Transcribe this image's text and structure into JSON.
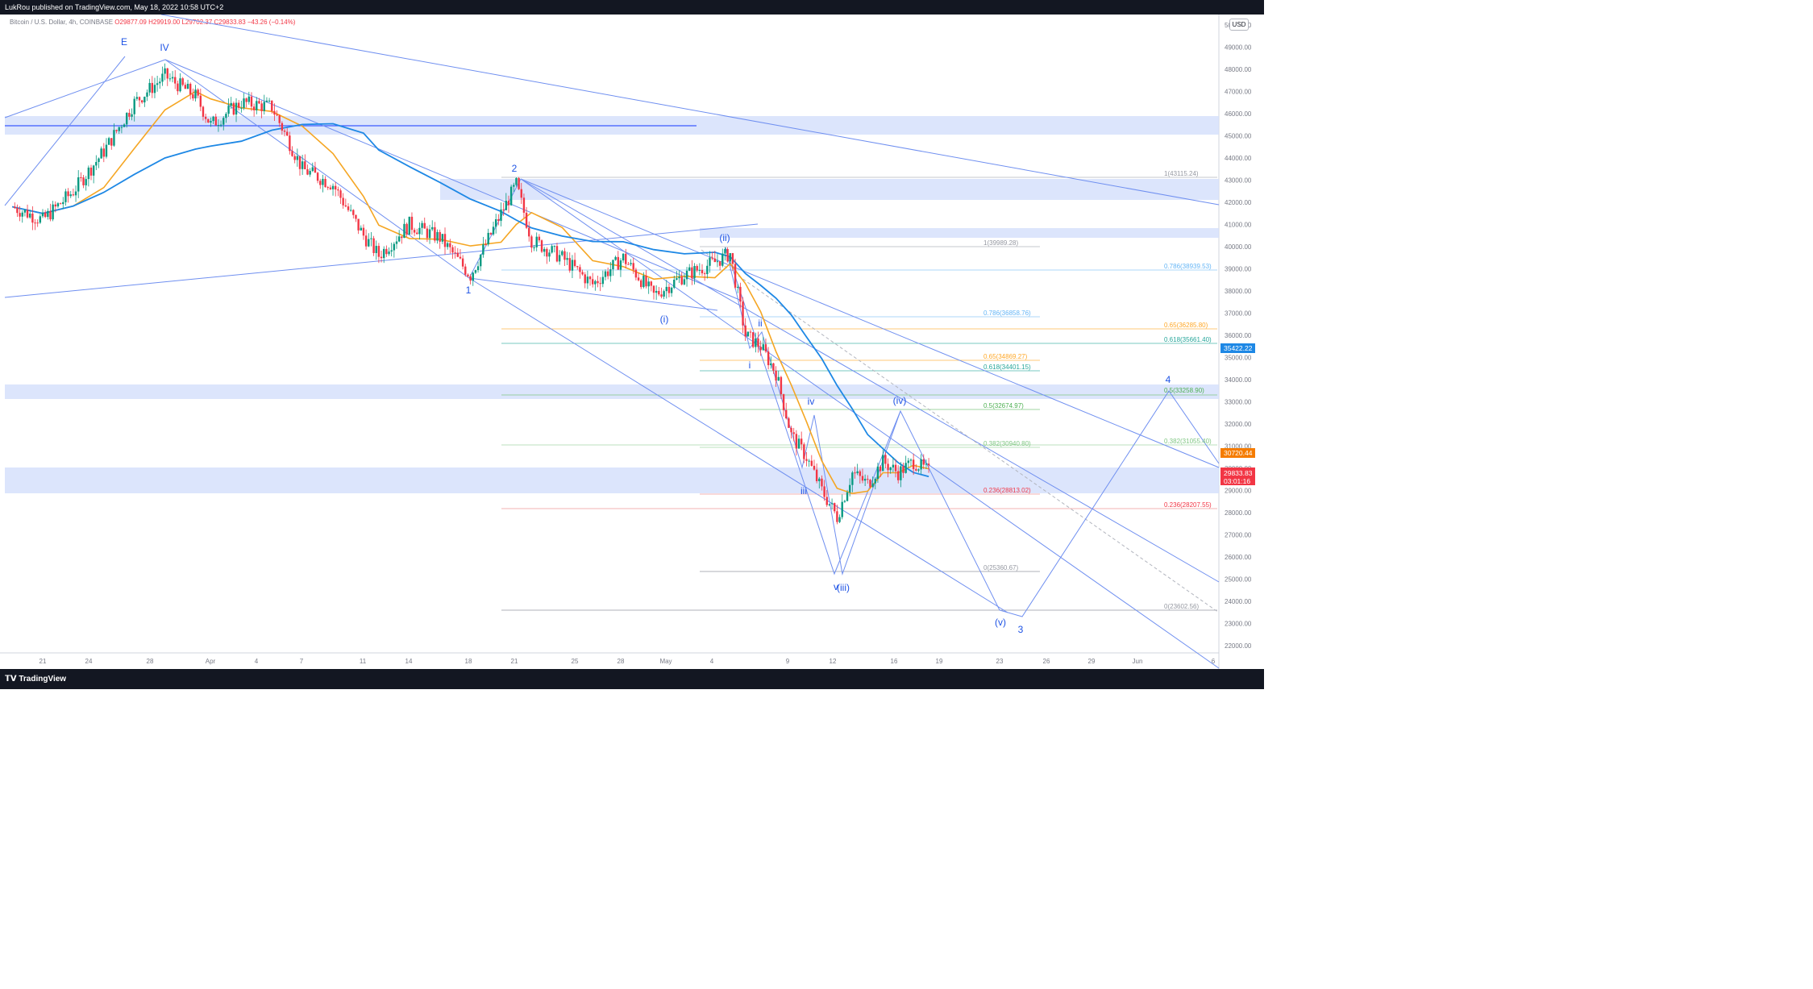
{
  "header": {
    "publisher_line": "LukRou published on TradingView.com, May 18, 2022 10:58 UTC+2"
  },
  "symbol": {
    "name": "Bitcoin / U.S. Dollar, 4h, COINBASE",
    "ohlc": "O29877.09  H29919.00  L29702.37  C29833.83  −43.26 (−0.14%)"
  },
  "price_axis": {
    "currency_button": "USD",
    "ticks": [
      "50000.00",
      "49000.00",
      "48000.00",
      "47000.00",
      "46000.00",
      "45000.00",
      "44000.00",
      "43000.00",
      "42000.00",
      "41000.00",
      "40000.00",
      "39000.00",
      "38000.00",
      "37000.00",
      "36000.00",
      "35000.00",
      "34000.00",
      "33000.00",
      "32000.00",
      "31000.00",
      "30000.00",
      "29000.00",
      "28000.00",
      "27000.00",
      "26000.00",
      "25000.00",
      "24000.00",
      "23000.00",
      "22000.00"
    ]
  },
  "time_axis": {
    "ticks": [
      "21",
      "24",
      "28",
      "Apr",
      "4",
      "7",
      "11",
      "14",
      "18",
      "21",
      "25",
      "28",
      "May",
      "4",
      "9",
      "12",
      "16",
      "19",
      "23",
      "26",
      "29",
      "Jun",
      "6"
    ]
  },
  "price_tags": [
    {
      "label": "35422.22",
      "color": "#1e88e5"
    },
    {
      "label": "30720.44",
      "color": "#f57c00"
    },
    {
      "label": "29833.83",
      "sub": "03:01:16",
      "color": "#f23645"
    }
  ],
  "colors": {
    "up_candle": "#089981",
    "down_candle": "#f23645",
    "ma_fast": "#f5a623",
    "ma_slow": "#1e88e5",
    "trendline": "#6f8ff0",
    "zone": "#d6e0fb",
    "wave_label": "#1e53e5"
  },
  "wave_labels": [
    "E",
    "IV",
    "1",
    "2",
    "(i)",
    "(ii)",
    "i",
    "ii",
    "iii",
    "iv",
    "v",
    "(iii)",
    "(iv)",
    "(v)",
    "3",
    "4"
  ],
  "fib_levels": [
    {
      "label": "1(43115.24)",
      "color": "#9598a1"
    },
    {
      "label": "1(39989.28)",
      "color": "#9598a1"
    },
    {
      "label": "0.786(38939.53)",
      "color": "#64b5f6"
    },
    {
      "label": "0.786(36858.76)",
      "color": "#64b5f6"
    },
    {
      "label": "0.65(36285.80)",
      "color": "#ffa726"
    },
    {
      "label": "0.618(35661.40)",
      "color": "#26a69a"
    },
    {
      "label": "0.65(34869.27)",
      "color": "#ffa726"
    },
    {
      "label": "0.618(34401.15)",
      "color": "#26a69a"
    },
    {
      "label": "0.5(33258.90)",
      "color": "#4caf50"
    },
    {
      "label": "0.5(32674.97)",
      "color": "#4caf50"
    },
    {
      "label": "0.382(31055.40)",
      "color": "#81c784"
    },
    {
      "label": "0.382(30940.80)",
      "color": "#81c784"
    },
    {
      "label": "0.236(28813.02)",
      "color": "#f23645"
    },
    {
      "label": "0.236(28207.55)",
      "color": "#f23645"
    },
    {
      "label": "0(25360.67)",
      "color": "#9598a1"
    },
    {
      "label": "0(23602.56)",
      "color": "#9598a1"
    }
  ],
  "footer": {
    "brand": "TradingView"
  },
  "chart_data": {
    "type": "line",
    "title": "Bitcoin / U.S. Dollar, 4h, COINBASE",
    "y_axis_range": [
      22000,
      50000
    ],
    "x_axis_range": [
      "2022-03-19",
      "2022-06-06"
    ],
    "grid": false,
    "series": [
      {
        "values": [
          {
            "x": "2022-03-19",
            "y": 41800
          },
          {
            "x": "2022-03-21",
            "y": 41200
          },
          {
            "x": "2022-03-23",
            "y": 42500
          },
          {
            "x": "2022-03-25",
            "y": 44300
          },
          {
            "x": "2022-03-27",
            "y": 46500
          },
          {
            "x": "2022-03-29",
            "y": 47700
          },
          {
            "x": "2022-03-31",
            "y": 46800
          },
          {
            "x": "2022-04-01",
            "y": 45500
          },
          {
            "x": "2022-04-03",
            "y": 46500
          },
          {
            "x": "2022-04-05",
            "y": 46300
          },
          {
            "x": "2022-04-07",
            "y": 43500
          },
          {
            "x": "2022-04-09",
            "y": 42800
          },
          {
            "x": "2022-04-11",
            "y": 40500
          },
          {
            "x": "2022-04-12",
            "y": 39600
          },
          {
            "x": "2022-04-14",
            "y": 41000
          },
          {
            "x": "2022-04-16",
            "y": 40400
          },
          {
            "x": "2022-04-18",
            "y": 38700
          },
          {
            "x": "2022-04-20",
            "y": 41500
          },
          {
            "x": "2022-04-21",
            "y": 42800
          },
          {
            "x": "2022-04-22",
            "y": 40300
          },
          {
            "x": "2022-04-24",
            "y": 39500
          },
          {
            "x": "2022-04-26",
            "y": 38300
          },
          {
            "x": "2022-04-28",
            "y": 39500
          },
          {
            "x": "2022-04-30",
            "y": 37800
          },
          {
            "x": "2022-05-02",
            "y": 38700
          },
          {
            "x": "2022-05-04",
            "y": 39300
          },
          {
            "x": "2022-05-05",
            "y": 39700
          },
          {
            "x": "2022-05-06",
            "y": 36000
          },
          {
            "x": "2022-05-07",
            "y": 35500
          },
          {
            "x": "2022-05-08",
            "y": 34300
          },
          {
            "x": "2022-05-09",
            "y": 31500
          },
          {
            "x": "2022-05-10",
            "y": 30500
          },
          {
            "x": "2022-05-11",
            "y": 29000
          },
          {
            "x": "2022-05-12",
            "y": 27800
          },
          {
            "x": "2022-05-13",
            "y": 29800
          },
          {
            "x": "2022-05-14",
            "y": 29300
          },
          {
            "x": "2022-05-15",
            "y": 30300
          },
          {
            "x": "2022-05-16",
            "y": 29800
          },
          {
            "x": "2022-05-17",
            "y": 30300
          },
          {
            "x": "2022-05-18",
            "y": 29834
          }
        ]
      }
    ]
  }
}
